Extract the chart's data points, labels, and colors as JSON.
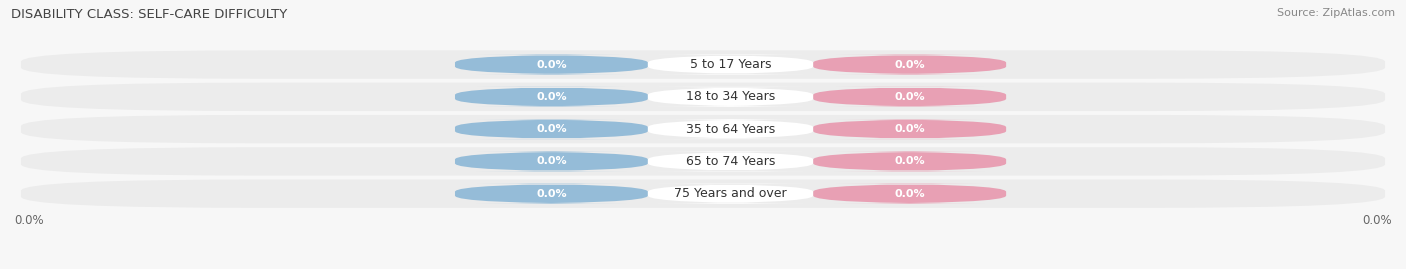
{
  "title": "DISABILITY CLASS: SELF-CARE DIFFICULTY",
  "source": "Source: ZipAtlas.com",
  "categories": [
    "5 to 17 Years",
    "18 to 34 Years",
    "35 to 64 Years",
    "65 to 74 Years",
    "75 Years and over"
  ],
  "male_values": [
    0.0,
    0.0,
    0.0,
    0.0,
    0.0
  ],
  "female_values": [
    0.0,
    0.0,
    0.0,
    0.0,
    0.0
  ],
  "male_color": "#95bcd8",
  "female_color": "#e8a0b4",
  "row_bg_color": "#ececec",
  "x_left_label": "0.0%",
  "x_right_label": "0.0%",
  "title_fontsize": 9.5,
  "source_fontsize": 8,
  "cat_label_fontsize": 9,
  "value_fontsize": 8,
  "legend_fontsize": 8.5,
  "tick_fontsize": 8.5,
  "bar_height": 0.62,
  "background_color": "#f7f7f7"
}
